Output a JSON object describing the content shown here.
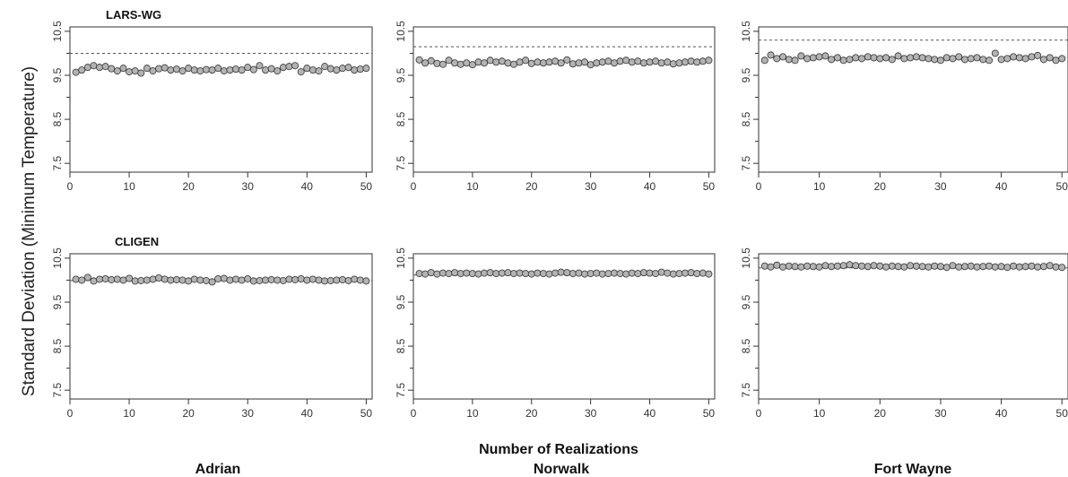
{
  "figure": {
    "ylabel": "Standard Deviation (Minimum Temperature)",
    "xlabel": "Number of Realizations",
    "rows": [
      "LARS-WG",
      "CLIGEN"
    ],
    "columns": [
      "Adrian",
      "Norwalk",
      "Fort Wayne"
    ],
    "colors": {
      "point_fill": "#b3b3b3",
      "point_stroke": "#333333",
      "reference_line": "#555555",
      "frame": "#333333"
    }
  },
  "chart_data": [
    {
      "type": "scatter",
      "row": "LARS-WG",
      "column": "Adrian",
      "xlim": [
        0,
        51
      ],
      "ylim": [
        7.3,
        10.6
      ],
      "xticks": [
        0,
        10,
        20,
        30,
        40,
        50
      ],
      "yticks": [
        7.5,
        8.5,
        9.5,
        10.5
      ],
      "reference_line": 10.0,
      "x": [
        1,
        2,
        3,
        4,
        5,
        6,
        7,
        8,
        9,
        10,
        11,
        12,
        13,
        14,
        15,
        16,
        17,
        18,
        19,
        20,
        21,
        22,
        23,
        24,
        25,
        26,
        27,
        28,
        29,
        30,
        31,
        32,
        33,
        34,
        35,
        36,
        37,
        38,
        39,
        40,
        41,
        42,
        43,
        44,
        45,
        46,
        47,
        48,
        49,
        50
      ],
      "y": [
        9.57,
        9.62,
        9.68,
        9.72,
        9.68,
        9.7,
        9.65,
        9.6,
        9.66,
        9.58,
        9.6,
        9.55,
        9.66,
        9.6,
        9.65,
        9.67,
        9.62,
        9.64,
        9.6,
        9.66,
        9.62,
        9.6,
        9.63,
        9.62,
        9.66,
        9.6,
        9.62,
        9.64,
        9.62,
        9.68,
        9.63,
        9.72,
        9.62,
        9.65,
        9.6,
        9.68,
        9.7,
        9.72,
        9.58,
        9.66,
        9.62,
        9.6,
        9.7,
        9.65,
        9.62,
        9.66,
        9.68,
        9.62,
        9.64,
        9.66
      ]
    },
    {
      "type": "scatter",
      "row": "LARS-WG",
      "column": "Norwalk",
      "xlim": [
        0,
        51
      ],
      "ylim": [
        7.3,
        10.6
      ],
      "xticks": [
        0,
        10,
        20,
        30,
        40,
        50
      ],
      "yticks": [
        7.5,
        8.5,
        9.5,
        10.5
      ],
      "reference_line": 10.15,
      "x": [
        1,
        2,
        3,
        4,
        5,
        6,
        7,
        8,
        9,
        10,
        11,
        12,
        13,
        14,
        15,
        16,
        17,
        18,
        19,
        20,
        21,
        22,
        23,
        24,
        25,
        26,
        27,
        28,
        29,
        30,
        31,
        32,
        33,
        34,
        35,
        36,
        37,
        38,
        39,
        40,
        41,
        42,
        43,
        44,
        45,
        46,
        47,
        48,
        49,
        50
      ],
      "y": [
        9.85,
        9.78,
        9.83,
        9.77,
        9.75,
        9.84,
        9.78,
        9.75,
        9.78,
        9.74,
        9.8,
        9.78,
        9.84,
        9.8,
        9.82,
        9.78,
        9.75,
        9.8,
        9.84,
        9.77,
        9.8,
        9.78,
        9.8,
        9.82,
        9.78,
        9.85,
        9.76,
        9.78,
        9.8,
        9.74,
        9.78,
        9.8,
        9.82,
        9.78,
        9.82,
        9.84,
        9.8,
        9.82,
        9.78,
        9.8,
        9.82,
        9.78,
        9.8,
        9.76,
        9.78,
        9.8,
        9.82,
        9.8,
        9.82,
        9.84
      ]
    },
    {
      "type": "scatter",
      "row": "LARS-WG",
      "column": "Fort Wayne",
      "xlim": [
        0,
        51
      ],
      "ylim": [
        7.3,
        10.6
      ],
      "xticks": [
        0,
        10,
        20,
        30,
        40,
        50
      ],
      "yticks": [
        7.5,
        8.5,
        9.5,
        10.5
      ],
      "reference_line": 10.3,
      "x": [
        1,
        2,
        3,
        4,
        5,
        6,
        7,
        8,
        9,
        10,
        11,
        12,
        13,
        14,
        15,
        16,
        17,
        18,
        19,
        20,
        21,
        22,
        23,
        24,
        25,
        26,
        27,
        28,
        29,
        30,
        31,
        32,
        33,
        34,
        35,
        36,
        37,
        38,
        39,
        40,
        41,
        42,
        43,
        44,
        45,
        46,
        47,
        48,
        49,
        50
      ],
      "y": [
        9.84,
        9.96,
        9.88,
        9.92,
        9.86,
        9.84,
        9.94,
        9.88,
        9.9,
        9.92,
        9.94,
        9.86,
        9.9,
        9.84,
        9.86,
        9.9,
        9.88,
        9.92,
        9.9,
        9.88,
        9.9,
        9.86,
        9.94,
        9.88,
        9.9,
        9.92,
        9.9,
        9.88,
        9.86,
        9.84,
        9.9,
        9.88,
        9.92,
        9.86,
        9.88,
        9.9,
        9.86,
        9.84,
        10.0,
        9.86,
        9.88,
        9.92,
        9.9,
        9.88,
        9.92,
        9.95,
        9.86,
        9.9,
        9.84,
        9.88
      ]
    },
    {
      "type": "scatter",
      "row": "CLIGEN",
      "column": "Adrian",
      "xlim": [
        0,
        51
      ],
      "ylim": [
        7.3,
        10.6
      ],
      "xticks": [
        0,
        10,
        20,
        30,
        40,
        50
      ],
      "yticks": [
        7.5,
        8.5,
        9.5,
        10.5
      ],
      "reference_line": 9.99,
      "x": [
        1,
        2,
        3,
        4,
        5,
        6,
        7,
        8,
        9,
        10,
        11,
        12,
        13,
        14,
        15,
        16,
        17,
        18,
        19,
        20,
        21,
        22,
        23,
        24,
        25,
        26,
        27,
        28,
        29,
        30,
        31,
        32,
        33,
        34,
        35,
        36,
        37,
        38,
        39,
        40,
        41,
        42,
        43,
        44,
        45,
        46,
        47,
        48,
        49,
        50
      ],
      "y": [
        10.02,
        10.0,
        10.06,
        9.98,
        10.02,
        10.03,
        10.01,
        10.02,
        10.0,
        10.04,
        9.98,
        9.99,
        10.0,
        10.02,
        10.05,
        10.02,
        10.0,
        10.01,
        10.0,
        9.98,
        10.02,
        10.0,
        9.99,
        9.96,
        10.03,
        10.04,
        10.0,
        10.02,
        10.0,
        10.03,
        9.98,
        9.99,
        10.0,
        10.01,
        10.0,
        9.99,
        10.02,
        10.01,
        10.03,
        10.0,
        10.02,
        10.0,
        9.98,
        9.99,
        10.0,
        10.01,
        9.99,
        10.02,
        10.0,
        9.98
      ]
    },
    {
      "type": "scatter",
      "row": "CLIGEN",
      "column": "Norwalk",
      "xlim": [
        0,
        51
      ],
      "ylim": [
        7.3,
        10.6
      ],
      "xticks": [
        0,
        10,
        20,
        30,
        40,
        50
      ],
      "yticks": [
        7.5,
        8.5,
        9.5,
        10.5
      ],
      "reference_line": 10.12,
      "x": [
        1,
        2,
        3,
        4,
        5,
        6,
        7,
        8,
        9,
        10,
        11,
        12,
        13,
        14,
        15,
        16,
        17,
        18,
        19,
        20,
        21,
        22,
        23,
        24,
        25,
        26,
        27,
        28,
        29,
        30,
        31,
        32,
        33,
        34,
        35,
        36,
        37,
        38,
        39,
        40,
        41,
        42,
        43,
        44,
        45,
        46,
        47,
        48,
        49,
        50
      ],
      "y": [
        10.15,
        10.14,
        10.17,
        10.14,
        10.16,
        10.15,
        10.17,
        10.15,
        10.16,
        10.15,
        10.14,
        10.16,
        10.17,
        10.15,
        10.16,
        10.17,
        10.15,
        10.16,
        10.15,
        10.14,
        10.16,
        10.15,
        10.14,
        10.16,
        10.18,
        10.17,
        10.15,
        10.16,
        10.14,
        10.15,
        10.16,
        10.14,
        10.15,
        10.16,
        10.15,
        10.14,
        10.16,
        10.15,
        10.17,
        10.16,
        10.15,
        10.18,
        10.16,
        10.14,
        10.15,
        10.16,
        10.17,
        10.15,
        10.16,
        10.14
      ]
    },
    {
      "type": "scatter",
      "row": "CLIGEN",
      "column": "Fort Wayne",
      "xlim": [
        0,
        51
      ],
      "ylim": [
        7.3,
        10.6
      ],
      "xticks": [
        0,
        10,
        20,
        30,
        40,
        50
      ],
      "yticks": [
        7.5,
        8.5,
        9.5,
        10.5
      ],
      "reference_line": 10.28,
      "x": [
        1,
        2,
        3,
        4,
        5,
        6,
        7,
        8,
        9,
        10,
        11,
        12,
        13,
        14,
        15,
        16,
        17,
        18,
        19,
        20,
        21,
        22,
        23,
        24,
        25,
        26,
        27,
        28,
        29,
        30,
        31,
        32,
        33,
        34,
        35,
        36,
        37,
        38,
        39,
        40,
        41,
        42,
        43,
        44,
        45,
        46,
        47,
        48,
        49,
        50
      ],
      "y": [
        10.32,
        10.3,
        10.34,
        10.3,
        10.32,
        10.31,
        10.3,
        10.32,
        10.31,
        10.3,
        10.33,
        10.31,
        10.32,
        10.33,
        10.35,
        10.33,
        10.32,
        10.31,
        10.33,
        10.32,
        10.3,
        10.32,
        10.31,
        10.3,
        10.33,
        10.32,
        10.31,
        10.3,
        10.32,
        10.31,
        10.29,
        10.33,
        10.3,
        10.31,
        10.32,
        10.3,
        10.31,
        10.32,
        10.3,
        10.31,
        10.29,
        10.32,
        10.3,
        10.31,
        10.32,
        10.3,
        10.31,
        10.33,
        10.3,
        10.29
      ]
    }
  ]
}
